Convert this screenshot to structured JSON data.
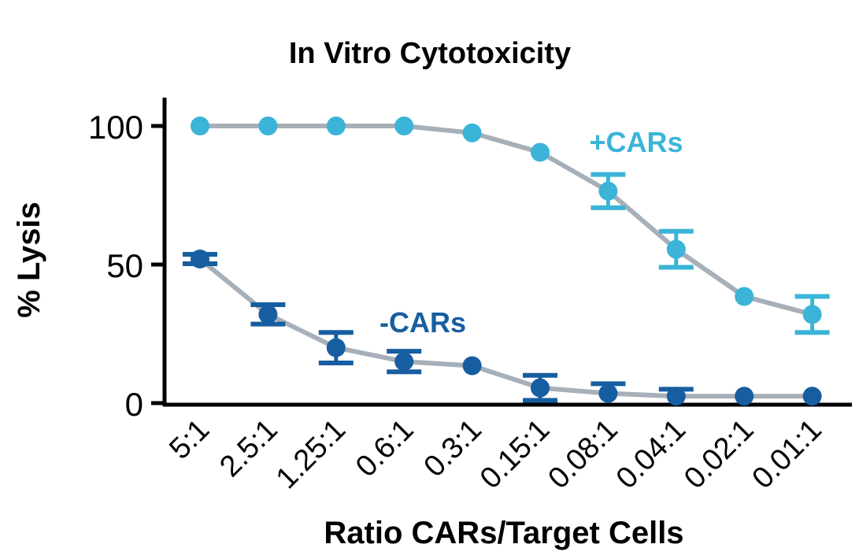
{
  "chart_data": {
    "type": "line",
    "title": "In Vitro Cytotoxicity",
    "xlabel": "Ratio CARs/Target Cells",
    "ylabel": "% Lysis",
    "categories": [
      "5:1",
      "2.5:1",
      "1.25:1",
      "0.6:1",
      "0.3:1",
      "0.15:1",
      "0.08:1",
      "0.04:1",
      "0.02:1",
      "0.01:1"
    ],
    "ylim": [
      0,
      100
    ],
    "yticks": [
      0,
      50,
      100
    ],
    "grid": false,
    "series": [
      {
        "name": "+CARs",
        "color": "#3bb4d8",
        "values": [
          100,
          100,
          100,
          100,
          97.5,
          90.5,
          76.5,
          55.5,
          38.5,
          32
        ],
        "errors": [
          0,
          0,
          0,
          0,
          0,
          0,
          6,
          6.5,
          0,
          6.5
        ]
      },
      {
        "name": "-CARs",
        "color": "#175ea0",
        "values": [
          52,
          32,
          20,
          15,
          13.5,
          5.5,
          3.5,
          2.5,
          2.5,
          2.5
        ],
        "errors": [
          1.7,
          3.5,
          5.5,
          3.7,
          0,
          4.5,
          3.5,
          2.5,
          0,
          0
        ]
      }
    ],
    "line_color": "#a7afb8"
  }
}
